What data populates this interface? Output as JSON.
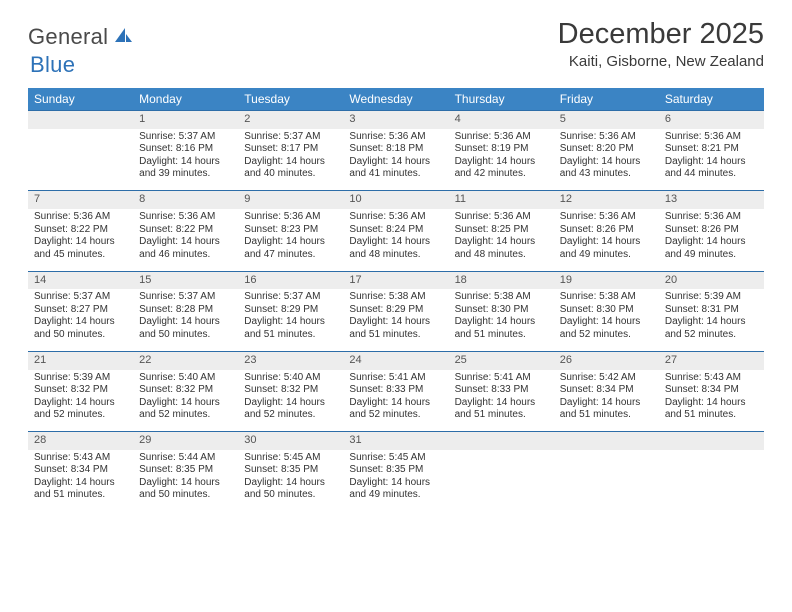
{
  "brand": {
    "part1": "General",
    "part2": "Blue"
  },
  "title": "December 2025",
  "subtitle": "Kaiti, Gisborne, New Zealand",
  "dayHeaders": [
    "Sunday",
    "Monday",
    "Tuesday",
    "Wednesday",
    "Thursday",
    "Friday",
    "Saturday"
  ],
  "colors": {
    "headerBg": "#3b84c4",
    "headerText": "#ffffff",
    "dayNumBg": "#ededed",
    "ruleLine": "#2d6da8",
    "bodyText": "#333333",
    "logoGray": "#4a4a4a",
    "logoBlue": "#2d72b8"
  },
  "weeks": [
    {
      "nums": [
        "",
        "1",
        "2",
        "3",
        "4",
        "5",
        "6"
      ],
      "cells": [
        null,
        {
          "sunrise": "5:37 AM",
          "sunset": "8:16 PM",
          "daylight": "14 hours and 39 minutes."
        },
        {
          "sunrise": "5:37 AM",
          "sunset": "8:17 PM",
          "daylight": "14 hours and 40 minutes."
        },
        {
          "sunrise": "5:36 AM",
          "sunset": "8:18 PM",
          "daylight": "14 hours and 41 minutes."
        },
        {
          "sunrise": "5:36 AM",
          "sunset": "8:19 PM",
          "daylight": "14 hours and 42 minutes."
        },
        {
          "sunrise": "5:36 AM",
          "sunset": "8:20 PM",
          "daylight": "14 hours and 43 minutes."
        },
        {
          "sunrise": "5:36 AM",
          "sunset": "8:21 PM",
          "daylight": "14 hours and 44 minutes."
        }
      ]
    },
    {
      "nums": [
        "7",
        "8",
        "9",
        "10",
        "11",
        "12",
        "13"
      ],
      "cells": [
        {
          "sunrise": "5:36 AM",
          "sunset": "8:22 PM",
          "daylight": "14 hours and 45 minutes."
        },
        {
          "sunrise": "5:36 AM",
          "sunset": "8:22 PM",
          "daylight": "14 hours and 46 minutes."
        },
        {
          "sunrise": "5:36 AM",
          "sunset": "8:23 PM",
          "daylight": "14 hours and 47 minutes."
        },
        {
          "sunrise": "5:36 AM",
          "sunset": "8:24 PM",
          "daylight": "14 hours and 48 minutes."
        },
        {
          "sunrise": "5:36 AM",
          "sunset": "8:25 PM",
          "daylight": "14 hours and 48 minutes."
        },
        {
          "sunrise": "5:36 AM",
          "sunset": "8:26 PM",
          "daylight": "14 hours and 49 minutes."
        },
        {
          "sunrise": "5:36 AM",
          "sunset": "8:26 PM",
          "daylight": "14 hours and 49 minutes."
        }
      ]
    },
    {
      "nums": [
        "14",
        "15",
        "16",
        "17",
        "18",
        "19",
        "20"
      ],
      "cells": [
        {
          "sunrise": "5:37 AM",
          "sunset": "8:27 PM",
          "daylight": "14 hours and 50 minutes."
        },
        {
          "sunrise": "5:37 AM",
          "sunset": "8:28 PM",
          "daylight": "14 hours and 50 minutes."
        },
        {
          "sunrise": "5:37 AM",
          "sunset": "8:29 PM",
          "daylight": "14 hours and 51 minutes."
        },
        {
          "sunrise": "5:38 AM",
          "sunset": "8:29 PM",
          "daylight": "14 hours and 51 minutes."
        },
        {
          "sunrise": "5:38 AM",
          "sunset": "8:30 PM",
          "daylight": "14 hours and 51 minutes."
        },
        {
          "sunrise": "5:38 AM",
          "sunset": "8:30 PM",
          "daylight": "14 hours and 52 minutes."
        },
        {
          "sunrise": "5:39 AM",
          "sunset": "8:31 PM",
          "daylight": "14 hours and 52 minutes."
        }
      ]
    },
    {
      "nums": [
        "21",
        "22",
        "23",
        "24",
        "25",
        "26",
        "27"
      ],
      "cells": [
        {
          "sunrise": "5:39 AM",
          "sunset": "8:32 PM",
          "daylight": "14 hours and 52 minutes."
        },
        {
          "sunrise": "5:40 AM",
          "sunset": "8:32 PM",
          "daylight": "14 hours and 52 minutes."
        },
        {
          "sunrise": "5:40 AM",
          "sunset": "8:32 PM",
          "daylight": "14 hours and 52 minutes."
        },
        {
          "sunrise": "5:41 AM",
          "sunset": "8:33 PM",
          "daylight": "14 hours and 52 minutes."
        },
        {
          "sunrise": "5:41 AM",
          "sunset": "8:33 PM",
          "daylight": "14 hours and 51 minutes."
        },
        {
          "sunrise": "5:42 AM",
          "sunset": "8:34 PM",
          "daylight": "14 hours and 51 minutes."
        },
        {
          "sunrise": "5:43 AM",
          "sunset": "8:34 PM",
          "daylight": "14 hours and 51 minutes."
        }
      ]
    },
    {
      "nums": [
        "28",
        "29",
        "30",
        "31",
        "",
        "",
        ""
      ],
      "cells": [
        {
          "sunrise": "5:43 AM",
          "sunset": "8:34 PM",
          "daylight": "14 hours and 51 minutes."
        },
        {
          "sunrise": "5:44 AM",
          "sunset": "8:35 PM",
          "daylight": "14 hours and 50 minutes."
        },
        {
          "sunrise": "5:45 AM",
          "sunset": "8:35 PM",
          "daylight": "14 hours and 50 minutes."
        },
        {
          "sunrise": "5:45 AM",
          "sunset": "8:35 PM",
          "daylight": "14 hours and 49 minutes."
        },
        null,
        null,
        null
      ]
    }
  ],
  "labels": {
    "sunrise": "Sunrise: ",
    "sunset": "Sunset: ",
    "daylight": "Daylight: "
  }
}
